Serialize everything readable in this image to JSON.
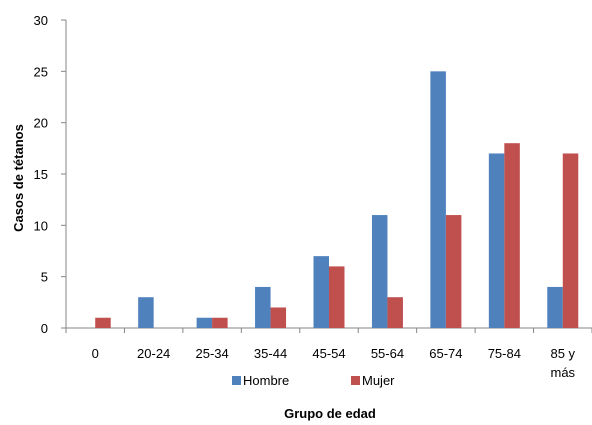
{
  "chart_data": {
    "type": "bar",
    "title": "",
    "xlabel": "Grupo de edad",
    "ylabel": "Casos de tétanos",
    "ylim": [
      0,
      30
    ],
    "yticks": [
      0,
      5,
      10,
      15,
      20,
      25,
      30
    ],
    "grid": false,
    "legend": "bottom",
    "categories": [
      {
        "line1": "0",
        "line2": ""
      },
      {
        "line1": "20-24",
        "line2": ""
      },
      {
        "line1": "25-34",
        "line2": ""
      },
      {
        "line1": "35-44",
        "line2": ""
      },
      {
        "line1": "45-54",
        "line2": ""
      },
      {
        "line1": "55-64",
        "line2": ""
      },
      {
        "line1": "65-74",
        "line2": ""
      },
      {
        "line1": "75-84",
        "line2": ""
      },
      {
        "line1": "85 y",
        "line2": "más"
      }
    ],
    "series": [
      {
        "name": "Hombre",
        "color": "#4f81bd",
        "values": [
          0,
          3,
          1,
          4,
          7,
          11,
          25,
          17,
          4
        ]
      },
      {
        "name": "Mujer",
        "color": "#c0504d",
        "values": [
          1,
          0,
          1,
          2,
          6,
          3,
          11,
          18,
          17
        ]
      }
    ]
  }
}
